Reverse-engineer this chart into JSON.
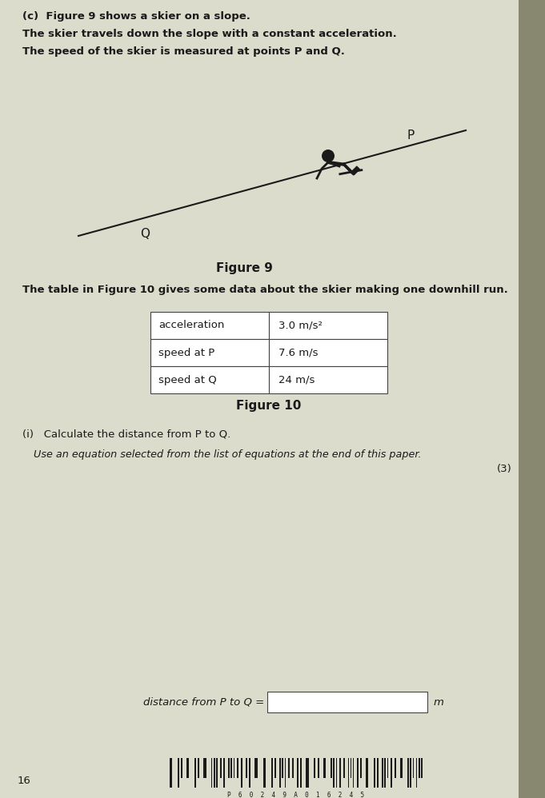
{
  "bg_color": "#dcdccc",
  "right_strip_color": "#888870",
  "text_color": "#1a1a1a",
  "line1": "(c)  Figure 9 shows a skier on a slope.",
  "line2": "The skier travels down the slope with a constant acceleration.",
  "line3": "The speed of the skier is measured at points P and Q.",
  "figure9_label": "Figure 9",
  "figure10_label": "Figure 10",
  "table_row0": [
    "acceleration",
    "3.0 m/s²"
  ],
  "table_row1": [
    "speed at P",
    "7.6 m/s"
  ],
  "table_row2": [
    "speed at Q",
    "24 m/s"
  ],
  "table_intro": "The table in Figure 10 gives some data about the skier making one downhill run.",
  "question_i": "(i)   Calculate the distance from P to Q.",
  "question_use": "Use an equation selected from the list of equations at the end of this paper.",
  "marks": "(3)",
  "answer_label": "distance from P to Q =",
  "answer_unit": "m",
  "page_number": "16",
  "barcode_text": "P  6  0  2  4  9  A  0  1  6  2  4  5",
  "slope_color": "#1a1a1a",
  "line_width": 1.5
}
